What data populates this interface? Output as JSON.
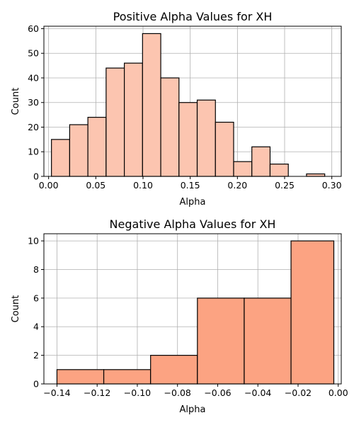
{
  "chart_data": [
    {
      "type": "bar",
      "subtype": "histogram",
      "title": "Positive Alpha Values for XH",
      "xlabel": "Alpha",
      "ylabel": "Count",
      "xlim": [
        -0.005,
        0.31
      ],
      "ylim": [
        0,
        61
      ],
      "grid": true,
      "bar_color": "#fcc5b0",
      "bin_edges": [
        0.003,
        0.0223,
        0.0416,
        0.0609,
        0.0802,
        0.0995,
        0.1188,
        0.1381,
        0.1574,
        0.1767,
        0.196,
        0.2153,
        0.2346,
        0.2539,
        0.2732,
        0.2925
      ],
      "values": [
        15,
        21,
        24,
        44,
        46,
        58,
        40,
        30,
        31,
        22,
        6,
        12,
        5,
        0,
        1
      ],
      "xticks": [
        0.0,
        0.05,
        0.1,
        0.15,
        0.2,
        0.25,
        0.3
      ],
      "xtick_labels": [
        "0.00",
        "0.05",
        "0.10",
        "0.15",
        "0.20",
        "0.25",
        "0.30"
      ],
      "yticks": [
        0,
        10,
        20,
        30,
        40,
        50,
        60
      ],
      "ytick_labels": [
        "0",
        "10",
        "20",
        "30",
        "40",
        "50",
        "60"
      ]
    },
    {
      "type": "bar",
      "subtype": "histogram",
      "title": "Negative Alpha Values for XH",
      "xlabel": "Alpha",
      "ylabel": "Count",
      "xlim": [
        -0.1465,
        0.0015
      ],
      "ylim": [
        0,
        10.5
      ],
      "grid": true,
      "bar_color": "#fca382",
      "bin_edges": [
        -0.14,
        -0.1167,
        -0.0934,
        -0.0701,
        -0.0468,
        -0.0235,
        -0.0022
      ],
      "values": [
        1,
        1,
        2,
        6,
        6,
        10
      ],
      "xticks": [
        -0.14,
        -0.12,
        -0.1,
        -0.08,
        -0.06,
        -0.04,
        -0.02,
        0.0
      ],
      "xtick_labels": [
        "−0.14",
        "−0.12",
        "−0.10",
        "−0.08",
        "−0.06",
        "−0.04",
        "−0.02",
        "0.00"
      ],
      "yticks": [
        0,
        2,
        4,
        6,
        8,
        10
      ],
      "ytick_labels": [
        "0",
        "2",
        "4",
        "6",
        "8",
        "10"
      ]
    }
  ]
}
